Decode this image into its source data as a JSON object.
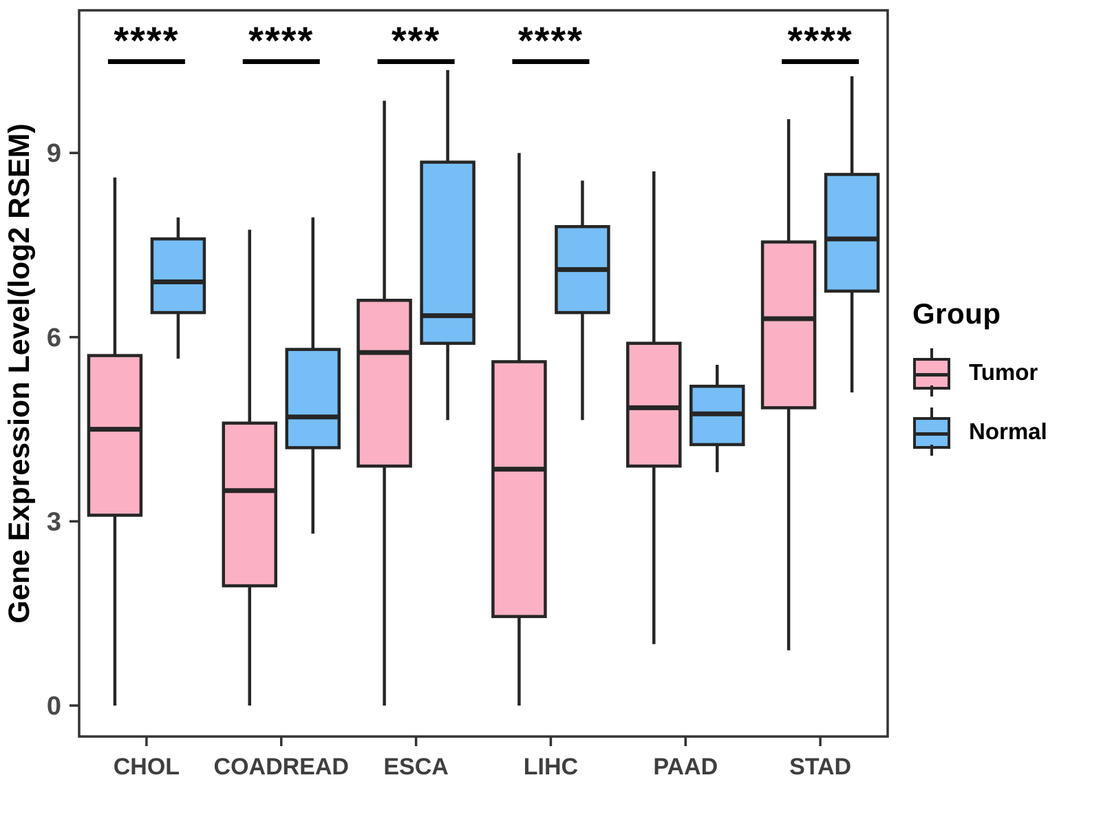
{
  "figure": {
    "legend": {
      "title": "Group",
      "items": [
        {
          "label": "Tumor",
          "color": "#FBB1C3"
        },
        {
          "label": "Normal",
          "color": "#76BEF5"
        }
      ]
    }
  },
  "chart_data": {
    "type": "boxplot",
    "title": "",
    "xlabel": "",
    "ylabel": "Gene Expression Level(log2 RSEM)",
    "categories": [
      "CHOL",
      "COADREAD",
      "ESCA",
      "LIHC",
      "PAAD",
      "STAD"
    ],
    "groups": [
      "Tumor",
      "Normal"
    ],
    "colors": {
      "Tumor": "#FBB1C3",
      "Normal": "#76BEF5",
      "stroke": "#262626",
      "axis": "#333333",
      "tick_label": "#4a4a4a"
    },
    "yticks": [
      0,
      3,
      6,
      9
    ],
    "ylim": [
      -0.5,
      11.3
    ],
    "grid": false,
    "legend_position": "right",
    "series": [
      {
        "name": "Tumor",
        "stats": [
          {
            "category": "CHOL",
            "whisker_low": 0.0,
            "q1": 3.1,
            "median": 4.5,
            "q3": 5.7,
            "whisker_high": 8.6
          },
          {
            "category": "COADREAD",
            "whisker_low": 0.0,
            "q1": 1.95,
            "median": 3.5,
            "q3": 4.6,
            "whisker_high": 7.75
          },
          {
            "category": "ESCA",
            "whisker_low": 0.0,
            "q1": 3.9,
            "median": 5.75,
            "q3": 6.6,
            "whisker_high": 9.85
          },
          {
            "category": "LIHC",
            "whisker_low": 0.0,
            "q1": 1.45,
            "median": 3.85,
            "q3": 5.6,
            "whisker_high": 9.0
          },
          {
            "category": "PAAD",
            "whisker_low": 1.0,
            "q1": 3.9,
            "median": 4.85,
            "q3": 5.9,
            "whisker_high": 8.7
          },
          {
            "category": "STAD",
            "whisker_low": 0.9,
            "q1": 4.85,
            "median": 6.3,
            "q3": 7.55,
            "whisker_high": 9.55
          }
        ]
      },
      {
        "name": "Normal",
        "stats": [
          {
            "category": "CHOL",
            "whisker_low": 5.65,
            "q1": 6.4,
            "median": 6.9,
            "q3": 7.6,
            "whisker_high": 7.95
          },
          {
            "category": "COADREAD",
            "whisker_low": 2.8,
            "q1": 4.2,
            "median": 4.7,
            "q3": 5.8,
            "whisker_high": 7.95
          },
          {
            "category": "ESCA",
            "whisker_low": 4.65,
            "q1": 5.9,
            "median": 6.35,
            "q3": 8.85,
            "whisker_high": 10.35
          },
          {
            "category": "LIHC",
            "whisker_low": 4.65,
            "q1": 6.4,
            "median": 7.1,
            "q3": 7.8,
            "whisker_high": 8.55
          },
          {
            "category": "PAAD",
            "whisker_low": 3.8,
            "q1": 4.25,
            "median": 4.75,
            "q3": 5.2,
            "whisker_high": 5.55
          },
          {
            "category": "STAD",
            "whisker_low": 5.1,
            "q1": 6.75,
            "median": 7.6,
            "q3": 8.65,
            "whisker_high": 10.25
          }
        ]
      }
    ],
    "significance": [
      {
        "category": "CHOL",
        "label": "****"
      },
      {
        "category": "COADREAD",
        "label": "****"
      },
      {
        "category": "ESCA",
        "label": "***"
      },
      {
        "category": "LIHC",
        "label": "****"
      },
      {
        "category": "STAD",
        "label": "****"
      }
    ]
  }
}
